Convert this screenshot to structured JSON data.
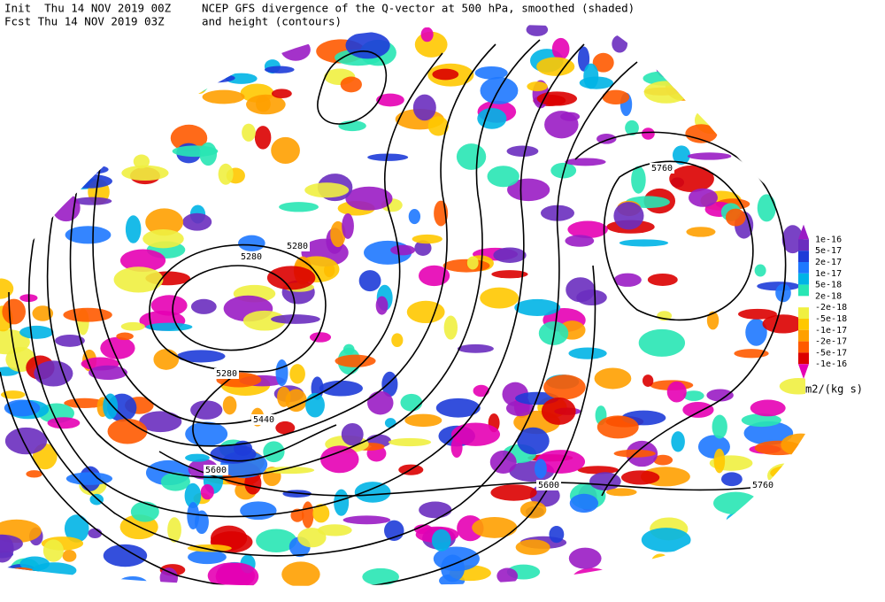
{
  "header": {
    "init": "Init  Thu 14 NOV 2019 00Z",
    "fcst": "Fcst Thu 14 NOV 2019 03Z",
    "title_line1": "NCEP GFS divergence of the Q-vector at 500 hPa, smoothed (shaded)",
    "title_line2": "and height (contours)"
  },
  "contour_labels": [
    5760,
    5280,
    5280,
    5280,
    5440,
    5600,
    5600,
    5760
  ],
  "colorbar": {
    "labels": [
      "1e-16",
      "5e-17",
      "2e-17",
      "1e-17",
      "5e-18",
      "2e-18",
      "-2e-18",
      "-5e-18",
      "-1e-17",
      "-2e-17",
      "-5e-17",
      "-1e-16"
    ],
    "colors": [
      "#9a1cc4",
      "#6a2dbf",
      "#1e3cd8",
      "#1e78ff",
      "#00b4e6",
      "#28e6b4",
      "#ffffff",
      "#f0f040",
      "#ffc800",
      "#ffa000",
      "#ff5a00",
      "#dc0000",
      "#e600b4"
    ],
    "units": "m2/(kg s)"
  }
}
